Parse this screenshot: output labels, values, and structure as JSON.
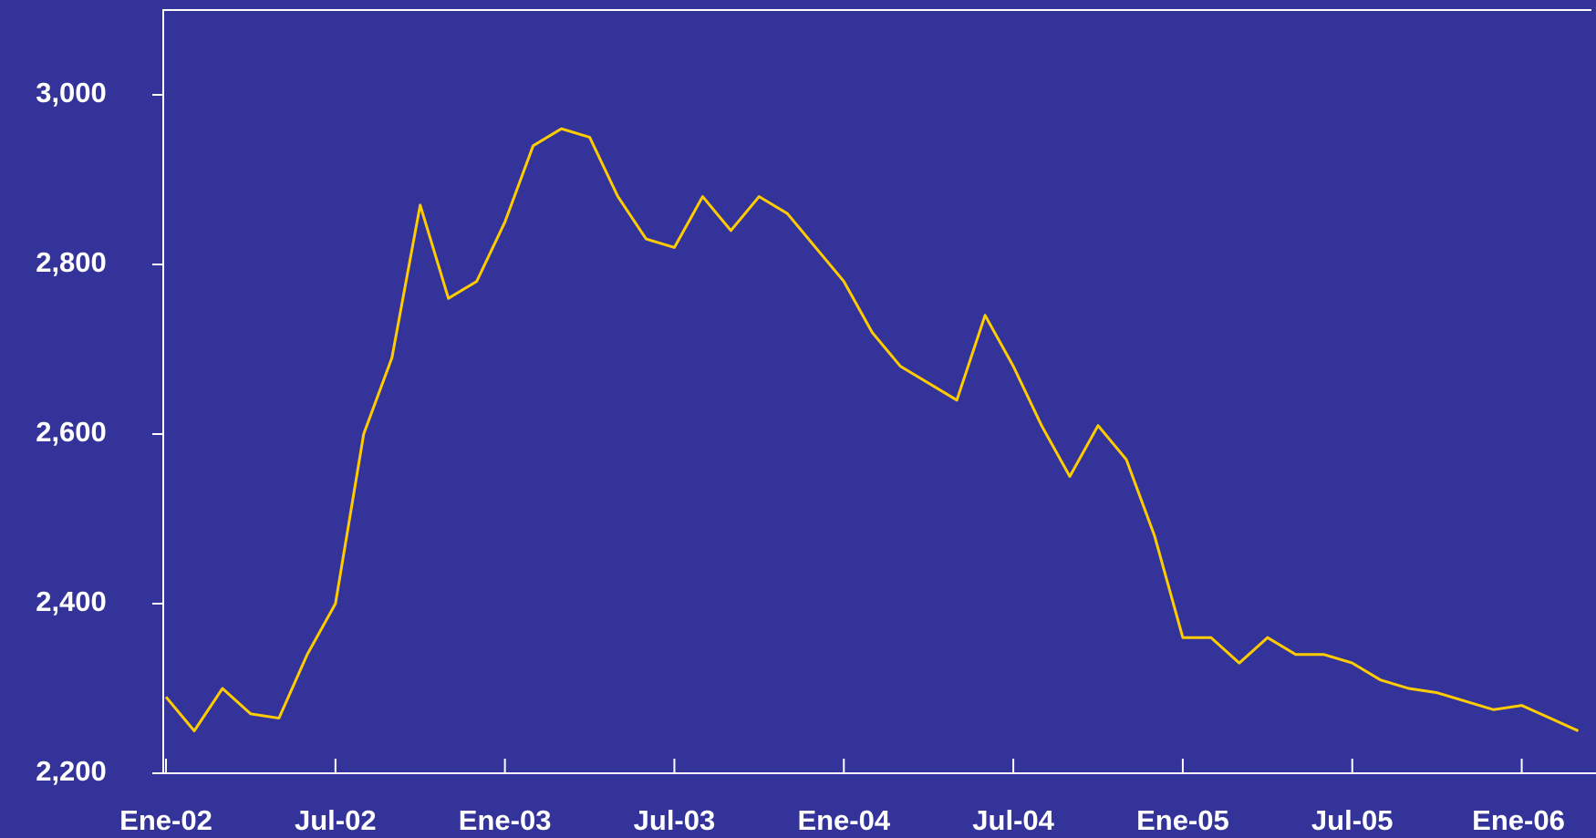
{
  "chart_data": {
    "type": "line",
    "categories": [
      "Ene-02",
      null,
      null,
      null,
      null,
      null,
      "Jul-02",
      null,
      null,
      null,
      null,
      null,
      "Ene-03",
      null,
      null,
      null,
      null,
      null,
      "Jul-03",
      null,
      null,
      null,
      null,
      null,
      "Ene-04",
      null,
      null,
      null,
      null,
      null,
      "Jul-04",
      null,
      null,
      null,
      null,
      null,
      "Ene-05",
      null,
      null,
      null,
      null,
      null,
      "Jul-05",
      null,
      null,
      null,
      null,
      null,
      "Ene-06",
      null,
      null
    ],
    "series": [
      {
        "color": "#ffcc00",
        "values": [
          2290,
          2250,
          2300,
          2270,
          2265,
          2340,
          2400,
          2600,
          2690,
          2870,
          2760,
          2780,
          2850,
          2940,
          2960,
          2950,
          2880,
          2830,
          2820,
          2880,
          2840,
          2880,
          2860,
          2820,
          2780,
          2720,
          2680,
          2660,
          2640,
          2740,
          2680,
          2610,
          2550,
          2610,
          2570,
          2480,
          2360,
          2360,
          2330,
          2360,
          2340,
          2340,
          2330,
          2310,
          2300,
          2295,
          2285,
          2275,
          2280,
          2265,
          2250
        ]
      }
    ],
    "ylim": [
      2200,
      3100
    ],
    "yticks": [
      {
        "value": 2200,
        "label": "2,200"
      },
      {
        "value": 2400,
        "label": "2,400"
      },
      {
        "value": 2600,
        "label": "2,600"
      },
      {
        "value": 2800,
        "label": "2,800"
      },
      {
        "value": 3000,
        "label": "3,000"
      }
    ]
  }
}
